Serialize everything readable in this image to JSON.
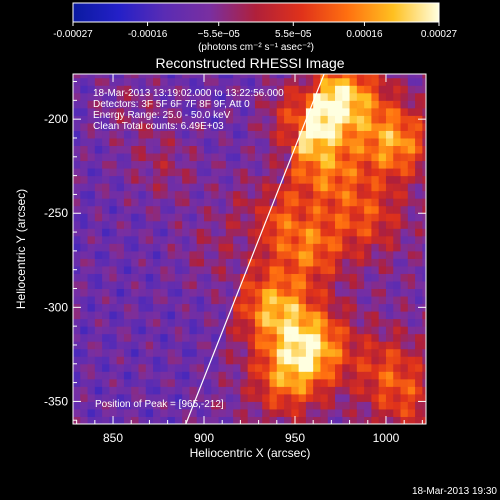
{
  "chart_data": {
    "type": "heatmap",
    "title": "Reconstructed RHESSI Image",
    "xlabel": "Heliocentric X (arcsec)",
    "ylabel": "Heliocentric Y (arcsec)",
    "xlim": [
      828,
      1022
    ],
    "ylim": [
      -362,
      -176
    ],
    "x_ticks": [
      850,
      900,
      950,
      1000
    ],
    "y_ticks": [
      -200,
      -250,
      -300,
      -350
    ],
    "colorbar": {
      "min": -0.00027,
      "max": 0.00027,
      "ticks": [
        "-0.00027",
        "-0.00016",
        "−5.5e−05",
        "5.5e−05",
        "0.00016",
        "0.00027"
      ],
      "tick_values": [
        -0.00027,
        -0.00016,
        -5.5e-05,
        5.5e-05,
        0.00016,
        0.00027
      ],
      "colors": [
        "#0a1aa0",
        "#2420c8",
        "#5a2cb4",
        "#7a2fa0",
        "#b0203a",
        "#e0321a",
        "#ff7010",
        "#ffc020",
        "#ffffe0"
      ]
    },
    "header_text": [
      "18-Mar-2013 13:19:02.000 to 13:22:56.000",
      "Detectors: 3F 5F 6F 7F 8F 9F, Att 0",
      "Energy Range: 25.0 - 50.0 keV",
      "Clean     Total counts: 6.49E+03"
    ],
    "peak_label": "Position of Peak = [965,-212]",
    "peak": [
      965,
      -212
    ],
    "limb_line": [
      [
        890,
        -362
      ],
      [
        966,
        -176
      ]
    ],
    "hotspots": [
      {
        "x": 955,
        "y": -200,
        "value": 1.0
      },
      {
        "x": 978,
        "y": -188,
        "value": 0.8
      },
      {
        "x": 1005,
        "y": -212,
        "value": 0.75
      },
      {
        "x": 968,
        "y": -228,
        "value": 0.55
      },
      {
        "x": 932,
        "y": -248,
        "value": 0.5
      },
      {
        "x": 990,
        "y": -252,
        "value": 0.45
      },
      {
        "x": 958,
        "y": -268,
        "value": 0.6
      },
      {
        "x": 938,
        "y": -300,
        "value": 0.75
      },
      {
        "x": 960,
        "y": -320,
        "value": 0.8
      },
      {
        "x": 945,
        "y": -338,
        "value": 0.6
      },
      {
        "x": 1000,
        "y": -332,
        "value": 0.4
      },
      {
        "x": 1012,
        "y": -350,
        "value": 0.35
      },
      {
        "x": 878,
        "y": -225,
        "value": 0.35
      },
      {
        "x": 905,
        "y": -270,
        "value": 0.3
      },
      {
        "x": 860,
        "y": -195,
        "value": 0.25
      }
    ]
  },
  "axis_units_label": "(photons cm⁻² s⁻¹ asec⁻²)",
  "footer_timestamp": "18-Mar-2013 19:30"
}
